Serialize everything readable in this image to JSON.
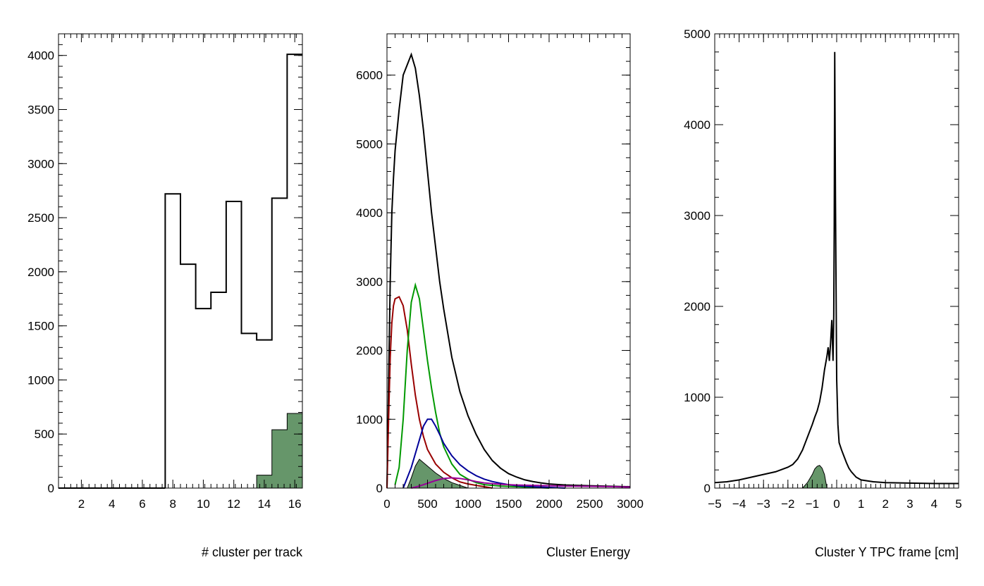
{
  "colors": {
    "frame": "#000000",
    "total": "#000000",
    "fill": "#66966a",
    "red": "#990000",
    "green": "#009900",
    "blue": "#000099",
    "magenta": "#990099"
  },
  "chart_data": [
    {
      "type": "histogram",
      "title": "",
      "xlabel": "# cluster per track",
      "ylabel": "",
      "xlim": [
        0.5,
        16.5
      ],
      "ylim": [
        0,
        4200
      ],
      "xticks": [
        2,
        4,
        6,
        8,
        10,
        12,
        14,
        16
      ],
      "yticks": [
        0,
        500,
        1000,
        1500,
        2000,
        2500,
        3000,
        3500,
        4000
      ],
      "series": [
        {
          "color": "total",
          "style": "step",
          "bin_edges": [
            7.5,
            8.5,
            9.5,
            10.5,
            11.5,
            12.5,
            13.5,
            14.5,
            15.5,
            16.5
          ],
          "values": [
            2720,
            2070,
            1660,
            1810,
            2650,
            1430,
            1370,
            2680,
            4010
          ]
        },
        {
          "color": "fill",
          "style": "filled",
          "bin_edges": [
            13.5,
            14.5,
            15.5,
            16.5
          ],
          "values": [
            120,
            540,
            690
          ]
        }
      ]
    },
    {
      "type": "histogram",
      "title": "",
      "xlabel": "Cluster Energy",
      "ylabel": "",
      "xlim": [
        0,
        3000
      ],
      "ylim": [
        0,
        6600
      ],
      "xticks": [
        0,
        500,
        1000,
        1500,
        2000,
        2500,
        3000
      ],
      "yticks": [
        0,
        1000,
        2000,
        3000,
        4000,
        5000,
        6000
      ],
      "series": [
        {
          "color": "total",
          "style": "line",
          "x": [
            0,
            20,
            40,
            60,
            80,
            100,
            150,
            200,
            250,
            300,
            350,
            400,
            450,
            500,
            550,
            600,
            650,
            700,
            800,
            900,
            1000,
            1100,
            1200,
            1300,
            1400,
            1500,
            1600,
            1700,
            1800,
            1900,
            2000,
            2200,
            2500,
            3000
          ],
          "y": [
            0,
            1500,
            3000,
            4000,
            4500,
            4900,
            5500,
            6000,
            6150,
            6300,
            6100,
            5700,
            5200,
            4600,
            4000,
            3500,
            3000,
            2600,
            1900,
            1400,
            1050,
            780,
            560,
            400,
            290,
            210,
            160,
            120,
            95,
            75,
            60,
            45,
            35,
            20
          ]
        },
        {
          "color": "red",
          "style": "line",
          "x": [
            0,
            20,
            40,
            60,
            80,
            100,
            150,
            200,
            250,
            300,
            350,
            400,
            450,
            500,
            600,
            700,
            800,
            900,
            1000,
            1100,
            1200,
            1300
          ],
          "y": [
            0,
            1000,
            1900,
            2400,
            2650,
            2750,
            2780,
            2650,
            2300,
            1800,
            1350,
            1000,
            750,
            560,
            350,
            230,
            150,
            90,
            60,
            40,
            20,
            0
          ]
        },
        {
          "color": "green",
          "style": "line",
          "x": [
            100,
            150,
            200,
            250,
            300,
            350,
            400,
            450,
            500,
            550,
            600,
            650,
            700,
            800,
            900,
            1000,
            1100,
            1200,
            1400,
            1600,
            1800,
            2000
          ],
          "y": [
            50,
            300,
            1000,
            2000,
            2700,
            2950,
            2750,
            2300,
            1850,
            1450,
            1100,
            800,
            600,
            350,
            200,
            130,
            80,
            50,
            30,
            20,
            10,
            0
          ]
        },
        {
          "color": "blue",
          "style": "line",
          "x": [
            200,
            300,
            400,
            450,
            500,
            550,
            600,
            650,
            700,
            800,
            900,
            1000,
            1100,
            1200,
            1300,
            1400,
            1500,
            1600,
            1800,
            2000,
            2200
          ],
          "y": [
            0,
            300,
            700,
            900,
            1000,
            1000,
            900,
            780,
            650,
            470,
            340,
            250,
            180,
            130,
            95,
            70,
            50,
            35,
            20,
            10,
            0
          ]
        },
        {
          "color": "magenta",
          "style": "line",
          "x": [
            300,
            400,
            500,
            600,
            700,
            800,
            900,
            1000,
            1100,
            1200,
            1400,
            1600,
            1800,
            2000,
            2200,
            2500,
            2800,
            3000
          ],
          "y": [
            0,
            30,
            70,
            110,
            140,
            150,
            140,
            120,
            95,
            75,
            55,
            45,
            40,
            35,
            30,
            25,
            20,
            15
          ]
        },
        {
          "color": "fill",
          "style": "filled",
          "x": [
            250,
            300,
            350,
            400,
            450,
            500,
            550,
            600,
            650,
            700,
            750,
            800,
            900,
            1000
          ],
          "y": [
            0,
            150,
            320,
            420,
            370,
            320,
            270,
            220,
            180,
            140,
            110,
            80,
            40,
            0
          ]
        }
      ]
    },
    {
      "type": "histogram",
      "title": "",
      "xlabel": "Cluster Y TPC frame [cm]",
      "ylabel": "",
      "xlim": [
        -5,
        5
      ],
      "ylim": [
        0,
        5000
      ],
      "xticks": [
        -5,
        -4,
        -3,
        -2,
        -1,
        0,
        1,
        2,
        3,
        4,
        5
      ],
      "yticks": [
        0,
        1000,
        2000,
        3000,
        4000,
        5000
      ],
      "series": [
        {
          "color": "total",
          "style": "line",
          "x": [
            -5,
            -4.5,
            -4,
            -3.5,
            -3,
            -2.5,
            -2,
            -1.8,
            -1.6,
            -1.4,
            -1.2,
            -1.0,
            -0.9,
            -0.8,
            -0.7,
            -0.6,
            -0.5,
            -0.4,
            -0.35,
            -0.3,
            -0.25,
            -0.2,
            -0.15,
            -0.12,
            -0.1,
            -0.08,
            -0.05,
            0,
            0.05,
            0.1,
            0.2,
            0.3,
            0.4,
            0.5,
            0.6,
            0.8,
            1.0,
            1.5,
            2,
            3,
            4,
            5
          ],
          "y": [
            60,
            70,
            90,
            120,
            150,
            180,
            230,
            260,
            320,
            420,
            560,
            700,
            780,
            850,
            950,
            1100,
            1300,
            1450,
            1550,
            1400,
            1600,
            1850,
            1400,
            1900,
            2900,
            4800,
            3200,
            1200,
            700,
            500,
            420,
            350,
            280,
            220,
            180,
            120,
            90,
            70,
            60,
            55,
            50,
            50
          ]
        },
        {
          "color": "fill",
          "style": "filled",
          "x": [
            -1.4,
            -1.2,
            -1.0,
            -0.9,
            -0.8,
            -0.7,
            -0.6,
            -0.5,
            -0.4
          ],
          "y": [
            0,
            60,
            150,
            210,
            240,
            250,
            220,
            150,
            0
          ]
        }
      ]
    }
  ]
}
